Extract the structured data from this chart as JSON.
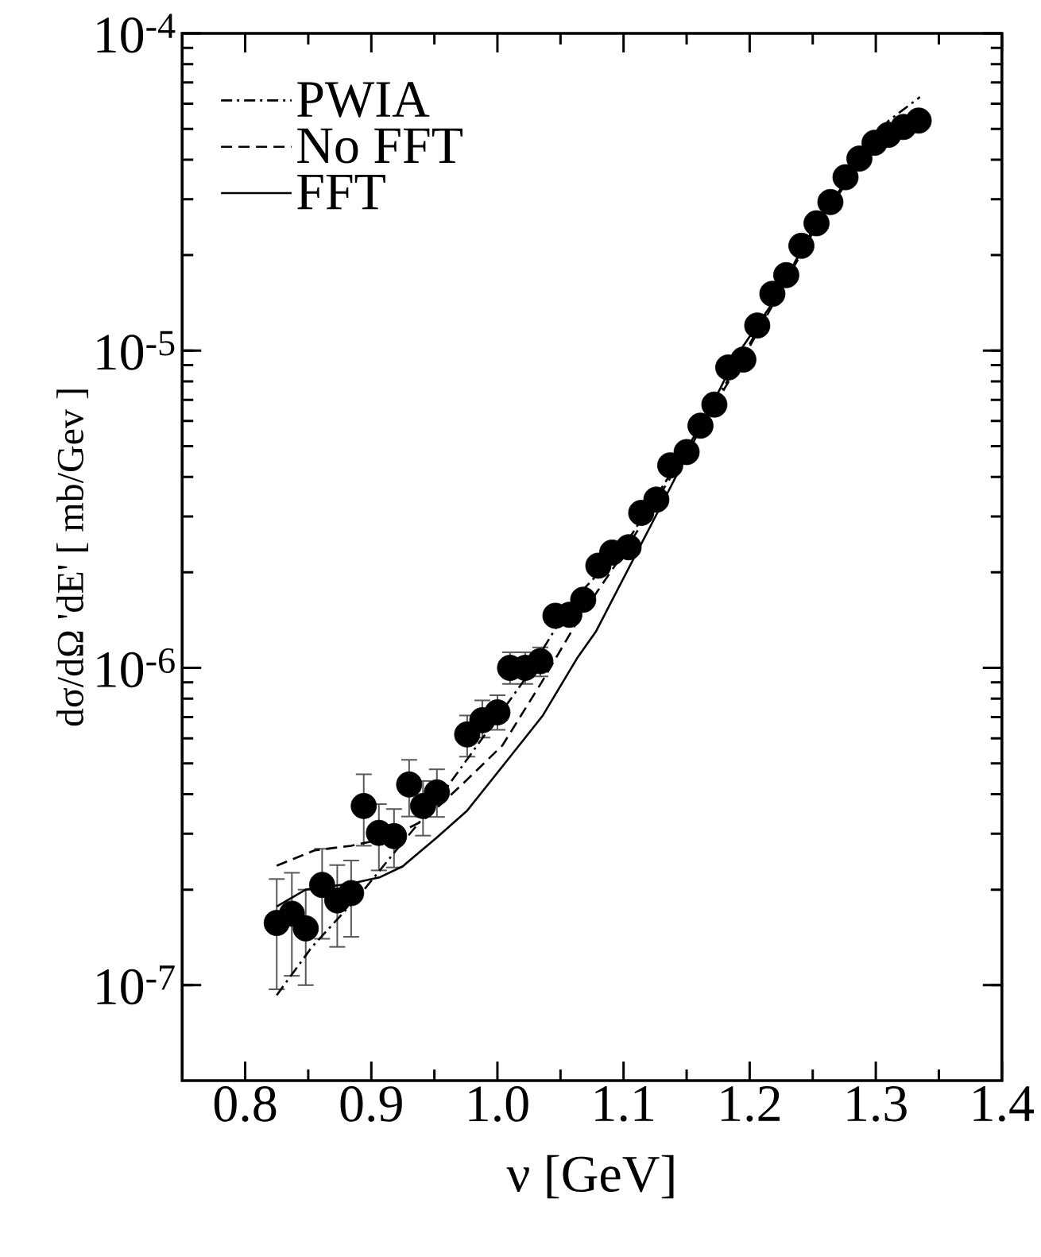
{
  "chart_data": {
    "type": "scatter",
    "xlabel": "ν [GeV]",
    "ylabel": "dσ/dΩ 'dE' [ mb/Gev ]",
    "log": "y",
    "xlim": [
      0.75,
      1.4
    ],
    "ylim": [
      5e-08,
      0.0001
    ],
    "xticks": [
      {
        "value": 0.8,
        "label": "0.8"
      },
      {
        "value": 0.9,
        "label": "0.9"
      },
      {
        "value": 1.0,
        "label": "1.0"
      },
      {
        "value": 1.1,
        "label": "1.1"
      },
      {
        "value": 1.2,
        "label": "1.2"
      },
      {
        "value": 1.3,
        "label": "1.3"
      },
      {
        "value": 1.4,
        "label": "1.4"
      }
    ],
    "yticks": [
      {
        "value": 1e-07,
        "label": "10$^{-7}$"
      },
      {
        "value": 1e-06,
        "label": "10$^{-6}$"
      },
      {
        "value": 1e-05,
        "label": "10$^{-5}$"
      },
      {
        "value": 0.0001,
        "label": "10$^{-4}$"
      }
    ],
    "grid": false,
    "legend": "top left",
    "marker": "circle",
    "series": [
      {
        "color": "#000000",
        "x": [
          0.825,
          0.837,
          0.848,
          0.861,
          0.873,
          0.884,
          0.894,
          0.906,
          0.918,
          0.93,
          0.941,
          0.952,
          0.976,
          0.988,
          1.0,
          1.01,
          1.022,
          1.034,
          1.046,
          1.057,
          1.068,
          1.08,
          1.091,
          1.104,
          1.114,
          1.126,
          1.137,
          1.15,
          1.161,
          1.172,
          1.183,
          1.195,
          1.206,
          1.218,
          1.229,
          1.241,
          1.253,
          1.264,
          1.276,
          1.287,
          1.299,
          1.31,
          1.322,
          1.334
        ],
        "values": [
          1.57e-07,
          1.68e-07,
          1.51e-07,
          2.07e-07,
          1.85e-07,
          1.95e-07,
          3.67e-07,
          3.02e-07,
          2.95e-07,
          4.29e-07,
          3.67e-07,
          4.05e-07,
          6.17e-07,
          6.84e-07,
          7.24e-07,
          1e-06,
          1e-06,
          1.05e-06,
          1.46e-06,
          1.47e-06,
          1.64e-06,
          2.1e-06,
          2.31e-06,
          2.4e-06,
          3.08e-06,
          3.39e-06,
          4.35e-06,
          4.79e-06,
          5.8e-06,
          6.76e-06,
          8.85e-06,
          9.37e-06,
          1.2e-05,
          1.51e-05,
          1.73e-05,
          2.14e-05,
          2.52e-05,
          2.94e-05,
          3.52e-05,
          4.03e-05,
          4.52e-05,
          4.79e-05,
          5.07e-05,
          5.31e-05
        ],
        "errors": [
          [
            9.7e-08,
            2.16e-07
          ],
          [
            1.07e-07,
            2.26e-07
          ],
          [
            1e-07,
            2e-07
          ],
          [
            1.4e-07,
            2.69e-07
          ],
          [
            1.32e-07,
            2.39e-07
          ],
          [
            1.42e-07,
            2.47e-07
          ],
          [
            2.75e-07,
            4.62e-07
          ],
          [
            2.3e-07,
            3.72e-07
          ],
          [
            2.35e-07,
            3.59e-07
          ],
          [
            3.4e-07,
            5.13e-07
          ],
          [
            2.96e-07,
            4.4e-07
          ],
          [
            3.39e-07,
            4.79e-07
          ],
          [
            5.25e-07,
            7.08e-07
          ],
          [
            6.03e-07,
            7.9e-07
          ],
          [
            6.38e-07,
            8.2e-07
          ],
          [
            8.9e-07,
            1.12e-06
          ],
          [
            8.9e-07,
            1.12e-06
          ],
          [
            9.4e-07,
            1.16e-06
          ],
          null,
          null,
          null,
          null,
          null,
          null,
          null,
          null,
          null,
          null,
          null,
          null,
          null,
          null,
          null,
          null,
          null,
          null,
          null,
          null,
          null,
          null,
          null,
          null,
          null,
          null
        ]
      },
      {
        "type": "line",
        "name": "PWIA",
        "color": "#000000",
        "marker": "none",
        "line_style": "dashdot",
        "x": [
          0.825,
          0.853,
          0.892,
          0.921,
          0.952,
          0.984,
          1.02,
          1.047,
          1.07,
          1.1,
          1.15,
          1.2,
          1.25,
          1.29,
          1.31,
          1.335
        ],
        "values": [
          9.3e-08,
          1.32e-07,
          1.95e-07,
          2.7e-07,
          3.8e-07,
          5.7e-07,
          9e-07,
          1.35e-06,
          1.8e-06,
          2.4e-06,
          4.9e-06,
          1.05e-05,
          2.4e-05,
          4.1e-05,
          5.3e-05,
          6.3e-05
        ]
      },
      {
        "type": "line",
        "name": "No FFT",
        "color": "#000000",
        "marker": "none",
        "line_style": "dashed",
        "x": [
          0.825,
          0.855,
          0.884,
          0.915,
          0.941,
          0.972,
          1.004,
          1.035,
          1.066,
          1.1,
          1.15,
          1.2,
          1.25,
          1.29,
          1.31,
          1.335
        ],
        "values": [
          2.38e-07,
          2.66e-07,
          2.75e-07,
          2.92e-07,
          3.3e-07,
          4.29e-07,
          5.7e-07,
          9e-07,
          1.46e-06,
          2.3e-06,
          4.8e-06,
          1.03e-05,
          2.35e-05,
          4.05e-05,
          4.9e-05,
          5.6e-05
        ]
      },
      {
        "type": "line",
        "name": "FFT",
        "color": "#000000",
        "marker": "none",
        "line_style": "solid",
        "x": [
          0.825,
          0.848,
          0.884,
          0.907,
          0.925,
          0.952,
          0.976,
          1.005,
          1.036,
          1.063,
          1.078,
          1.131,
          1.163,
          1.189,
          1.22,
          1.25,
          1.28,
          1.3,
          1.32,
          1.335
        ],
        "values": [
          1.77e-07,
          2e-07,
          2.09e-07,
          2.19e-07,
          2.37e-07,
          2.92e-07,
          3.55e-07,
          4.95e-07,
          7.08e-07,
          1.07e-06,
          1.3e-06,
          3.32e-06,
          5.9e-06,
          9.55e-06,
          1.45e-05,
          2.4e-05,
          3.6e-05,
          4.5e-05,
          5.2e-05,
          5.6e-05
        ]
      }
    ]
  }
}
